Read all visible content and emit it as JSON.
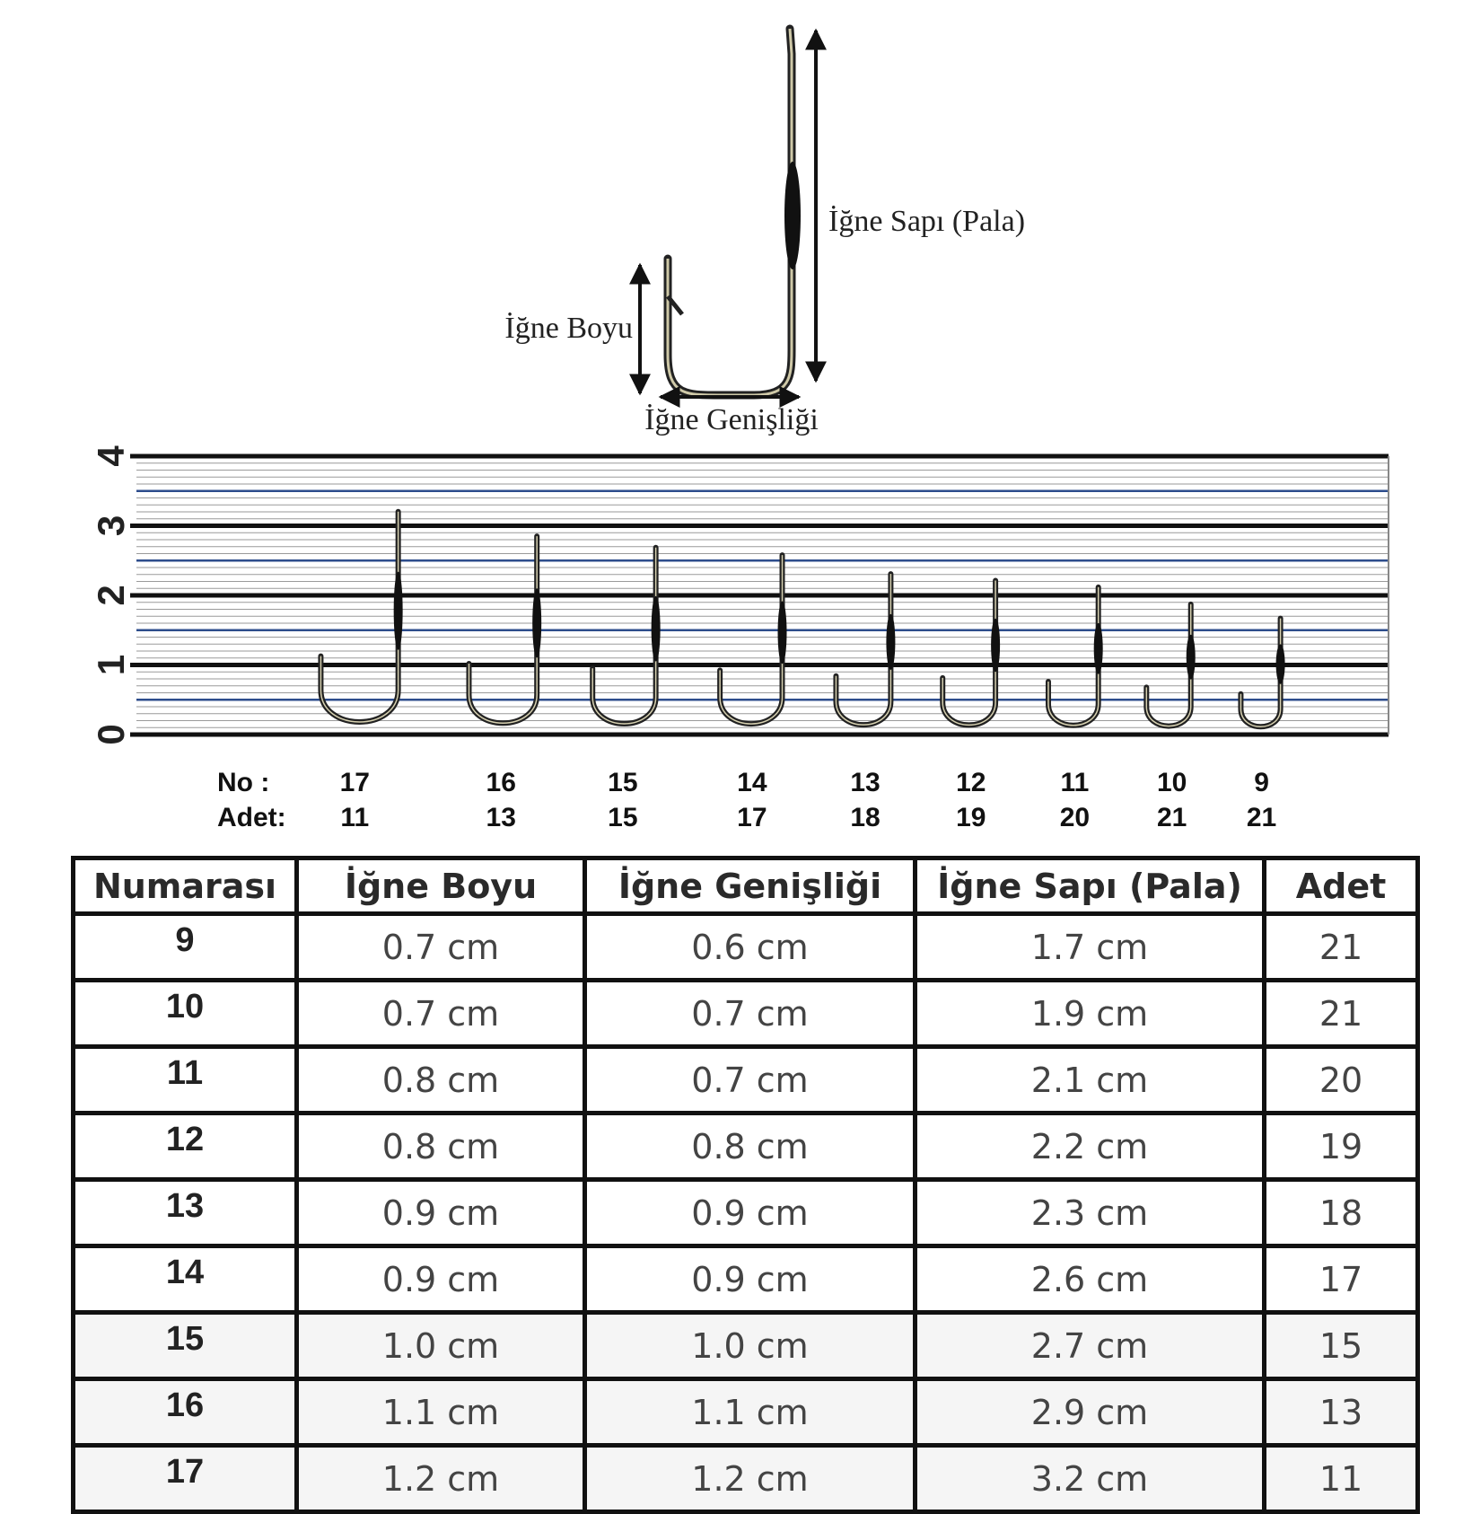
{
  "diagram": {
    "shank_label": "İğne Sapı (Pala)",
    "length_label": "İğne Boyu",
    "width_label": "İğne Genişliği"
  },
  "ruler": {
    "ticks": [
      0,
      1,
      2,
      3,
      4
    ]
  },
  "hooks": {
    "no_label": "No  :",
    "adet_label": "Adet:",
    "items": [
      {
        "no": 17,
        "adet": 11
      },
      {
        "no": 16,
        "adet": 13
      },
      {
        "no": 15,
        "adet": 15
      },
      {
        "no": 14,
        "adet": 17
      },
      {
        "no": 13,
        "adet": 18
      },
      {
        "no": 12,
        "adet": 19
      },
      {
        "no": 11,
        "adet": 20
      },
      {
        "no": 10,
        "adet": 21
      },
      {
        "no": 9,
        "adet": 21
      }
    ]
  },
  "table": {
    "headers": [
      "Numarası",
      "İğne Boyu",
      "İğne Genişliği",
      "İğne Sapı (Pala)",
      "Adet"
    ],
    "rows": [
      [
        9,
        "0.7 cm",
        "0.6 cm",
        "1.7 cm",
        21
      ],
      [
        10,
        "0.7 cm",
        "0.7 cm",
        "1.9 cm",
        21
      ],
      [
        11,
        "0.8 cm",
        "0.7 cm",
        "2.1 cm",
        20
      ],
      [
        12,
        "0.8 cm",
        "0.8 cm",
        "2.2 cm",
        19
      ],
      [
        13,
        "0.9 cm",
        "0.9 cm",
        "2.3 cm",
        18
      ],
      [
        14,
        "0.9 cm",
        "0.9 cm",
        "2.6 cm",
        17
      ],
      [
        15,
        "1.0 cm",
        "1.0 cm",
        "2.7 cm",
        15
      ],
      [
        16,
        "1.1 cm",
        "1.1 cm",
        "2.9 cm",
        13
      ],
      [
        17,
        "1.2 cm",
        "1.2 cm",
        "3.2 cm",
        11
      ]
    ]
  }
}
